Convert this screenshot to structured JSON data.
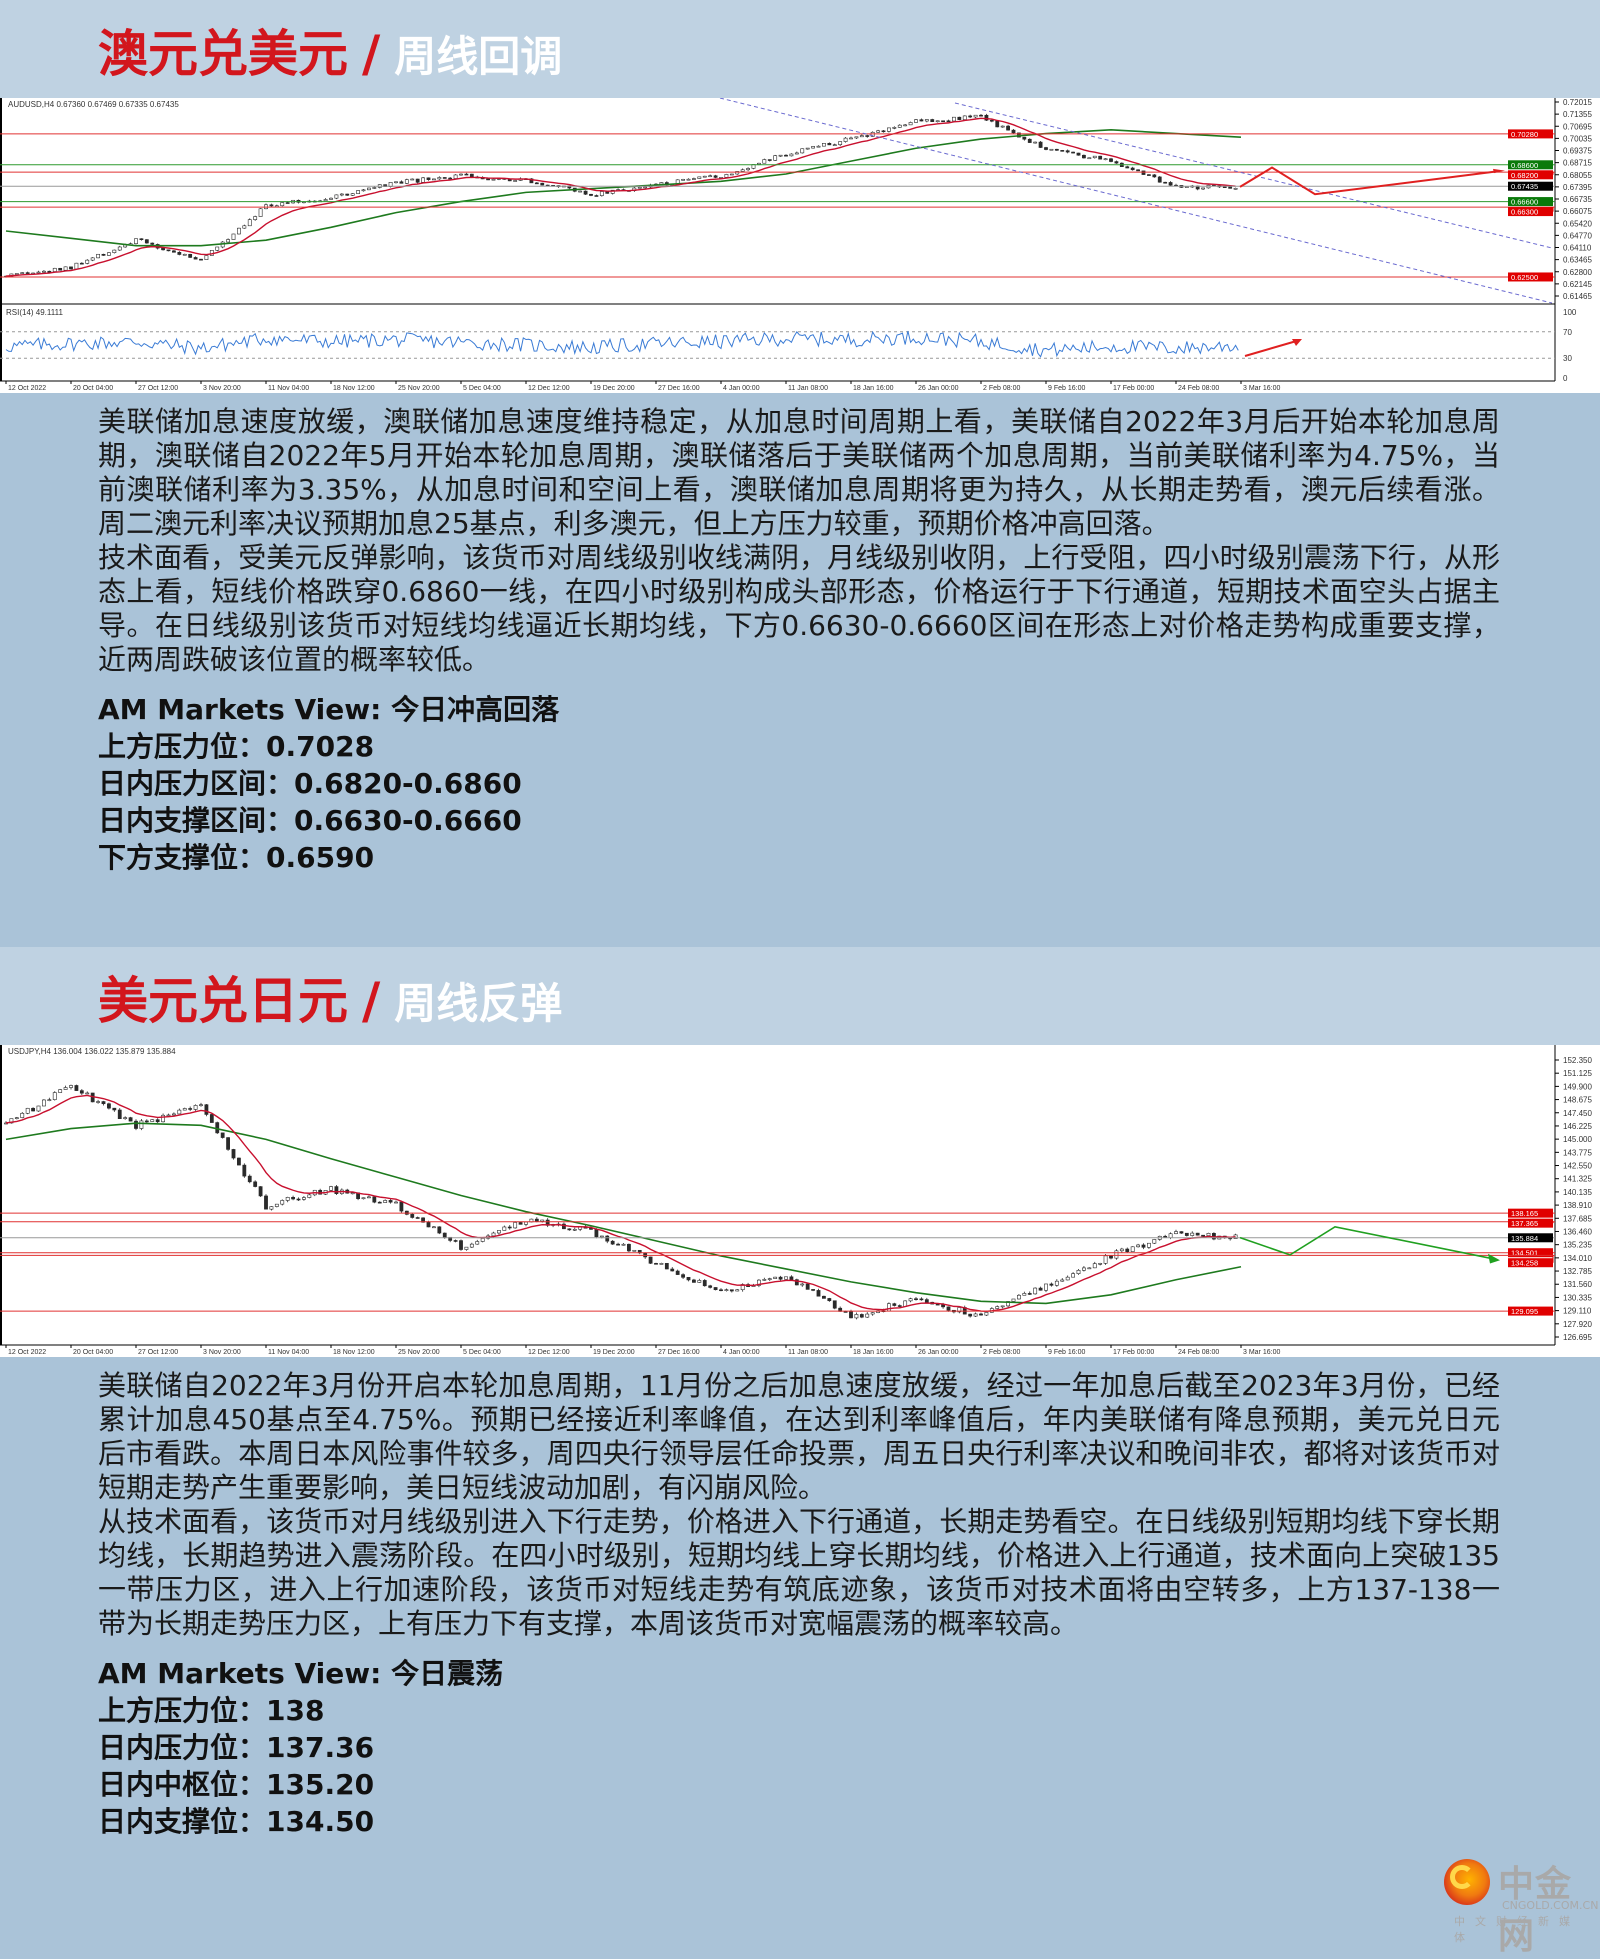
{
  "colors": {
    "title_red": "#d2161d",
    "subtitle": "#ffffff",
    "header_bg": "#bfd2e2",
    "body_bg": "#aac3d8",
    "candle": "#2a2a2a",
    "short_ma": "#c8102e",
    "long_ma": "#1e7a1e",
    "resistance_line": "#e03030",
    "support_line": "#2e9a2e",
    "channel": "#6a6ad0",
    "projection_aud": "#e02020",
    "projection_jpy": "#20a020"
  },
  "sections": [
    {
      "title": "澳元兑美元",
      "slash": "/",
      "subtitle": "周线回调",
      "paragraphs": [
        "美联储加息速度放缓，澳联储加息速度维持稳定，从加息时间周期上看，美联储自2022年3月后开始本轮加息周期，澳联储自2022年5月开始本轮加息周期，澳联储落后于美联储两个加息周期，当前美联储利率为4.75%，当前澳联储利率为3.35%，从加息时间和空间上看，澳联储加息周期将更为持久，从长期走势看，澳元后续看涨。周二澳元利率决议预期加息25基点，利多澳元，但上方压力较重，预期价格冲高回落。",
        "技术面看，受美元反弹影响，该货币对周线级别收线满阴，月线级别收阴，上行受阻，四小时级别震荡下行，从形态上看，短线价格跌穿0.6860一线，在四小时级别构成头部形态，价格运行于下行通道，短期技术面空头占据主导。在日线级别该货币对短线均线逼近长期均线，下方0.6630-0.6660区间在形态上对价格走势构成重要支撑，近两周跌破该位置的概率较低。"
      ],
      "view": [
        "AM Markets View: 今日冲高回落",
        "上方压力位：0.7028",
        "日内压力区间：0.6820-0.6860",
        "日内支撑区间：0.6630-0.6660",
        "下方支撑位：0.6590"
      ]
    },
    {
      "title": "美元兑日元",
      "slash": "/",
      "subtitle": "周线反弹",
      "paragraphs": [
        "美联储自2022年3月份开启本轮加息周期，11月份之后加息速度放缓，经过一年加息后截至2023年3月份，已经累计加息450基点至4.75%。预期已经接近利率峰值，在达到利率峰值后，年内美联储有降息预期，美元兑日元后市看跌。本周日本风险事件较多，周四央行领导层任命投票，周五日央行利率决议和晚间非农，都将对该货币对短期走势产生重要影响，美日短线波动加剧，有闪崩风险。",
        "从技术面看，该货币对月线级别进入下行走势，价格进入下行通道，长期走势看空。在日线级别短期均线下穿长期均线，长期趋势进入震荡阶段。在四小时级别，短期均线上穿长期均线，价格进入上行通道，技术面向上突破135一带压力区，进入上行加速阶段，该货币对短线走势有筑底迹象，该货币对技术面将由空转多，上方137-138一带为长期走势压力区，上有压力下有支撑，本周该货币对宽幅震荡的概率较高。"
      ],
      "view": [
        "AM Markets View: 今日震荡",
        "上方压力位：138",
        "日内压力位：137.36",
        "日内中枢位：135.20",
        "日内支撑位：134.50"
      ]
    }
  ],
  "chart_data": [
    {
      "type": "candlestick",
      "header": "AUDUSD,H4  0.67360 0.67469 0.67335 0.67435",
      "x_ticks": [
        "12 Oct 2022",
        "20 Oct 04:00",
        "27 Oct 12:00",
        "3 Nov 20:00",
        "11 Nov 04:00",
        "18 Nov 12:00",
        "25 Nov 20:00",
        "5 Dec 04:00",
        "12 Dec 12:00",
        "19 Dec 20:00",
        "27 Dec 16:00",
        "4 Jan 00:00",
        "11 Jan 08:00",
        "18 Jan 16:00",
        "26 Jan 00:00",
        "2 Feb 08:00",
        "9 Feb 16:00",
        "17 Feb 00:00",
        "24 Feb 08:00",
        "3 Mar 16:00"
      ],
      "close_at_ticks": [
        0.625,
        0.63,
        0.645,
        0.634,
        0.664,
        0.668,
        0.676,
        0.68,
        0.678,
        0.67,
        0.675,
        0.68,
        0.692,
        0.7,
        0.71,
        0.712,
        0.695,
        0.688,
        0.674,
        0.674
      ],
      "long_ma_at_ticks": [
        0.65,
        0.646,
        0.642,
        0.642,
        0.645,
        0.652,
        0.66,
        0.666,
        0.671,
        0.673,
        0.675,
        0.677,
        0.681,
        0.688,
        0.695,
        0.7,
        0.703,
        0.705,
        0.703,
        0.701
      ],
      "ylim": [
        0.61465,
        0.72015
      ],
      "y_ticks": [
        "0.72015",
        "0.71355",
        "0.70695",
        "0.70035",
        "0.69375",
        "0.68715",
        "0.68055",
        "0.67395",
        "0.66735",
        "0.66075",
        "0.65420",
        "0.64770",
        "0.64110",
        "0.63465",
        "0.62800",
        "0.62145",
        "0.61465"
      ],
      "levels": [
        {
          "label": "0.70280",
          "value": 0.7028,
          "kind": "resistance"
        },
        {
          "label": "0.68600",
          "value": 0.686,
          "kind": "support"
        },
        {
          "label": "0.68200",
          "value": 0.682,
          "kind": "resistance"
        },
        {
          "label": "0.67435",
          "value": 0.67435,
          "kind": "current"
        },
        {
          "label": "0.66600",
          "value": 0.666,
          "kind": "support"
        },
        {
          "label": "0.66300",
          "value": 0.663,
          "kind": "resistance"
        },
        {
          "label": "0.62500",
          "value": 0.625,
          "kind": "resistance"
        }
      ],
      "indicator": {
        "header": "RSI(14) 49.1111",
        "ylim": [
          0,
          100
        ],
        "levels": [
          70,
          30
        ],
        "y_ticks": [
          "100",
          "70",
          "30",
          "0"
        ],
        "values_at_ticks": [
          48,
          52,
          55,
          45,
          60,
          55,
          58,
          54,
          50,
          46,
          52,
          55,
          60,
          58,
          62,
          55,
          42,
          48,
          45,
          49
        ]
      }
    },
    {
      "type": "candlestick",
      "header": "USDJPY,H4  136.004 136.022 135.879 135.884",
      "x_ticks": [
        "12 Oct 2022",
        "20 Oct 04:00",
        "27 Oct 12:00",
        "3 Nov 20:00",
        "11 Nov 04:00",
        "18 Nov 12:00",
        "25 Nov 20:00",
        "5 Dec 04:00",
        "12 Dec 12:00",
        "19 Dec 20:00",
        "27 Dec 16:00",
        "4 Jan 00:00",
        "11 Jan 08:00",
        "18 Jan 16:00",
        "26 Jan 00:00",
        "2 Feb 08:00",
        "9 Feb 16:00",
        "17 Feb 00:00",
        "24 Feb 08:00",
        "3 Mar 16:00"
      ],
      "close_at_ticks": [
        146.5,
        149.9,
        146.3,
        148.0,
        138.8,
        140.4,
        138.9,
        135.0,
        137.5,
        136.5,
        133.5,
        131.0,
        132.4,
        128.5,
        130.2,
        128.6,
        131.5,
        134.2,
        136.3,
        135.9
      ],
      "long_ma_at_ticks": [
        145.0,
        146.0,
        146.5,
        146.3,
        145.0,
        143.2,
        141.5,
        139.8,
        138.3,
        137.0,
        135.6,
        134.2,
        133.0,
        131.8,
        130.8,
        130.0,
        129.8,
        130.6,
        132.0,
        133.2
      ],
      "ylim": [
        126.695,
        152.35
      ],
      "y_ticks": [
        "152.350",
        "151.125",
        "149.900",
        "148.675",
        "147.450",
        "146.225",
        "145.000",
        "143.775",
        "142.550",
        "141.325",
        "140.135",
        "138.910",
        "137.685",
        "136.460",
        "135.235",
        "134.010",
        "132.785",
        "131.560",
        "130.335",
        "129.110",
        "127.920",
        "126.695"
      ],
      "levels": [
        {
          "label": "138.165",
          "value": 138.165,
          "kind": "resistance"
        },
        {
          "label": "137.365",
          "value": 137.365,
          "kind": "resistance"
        },
        {
          "label": "135.884",
          "value": 135.884,
          "kind": "current"
        },
        {
          "label": "134.501",
          "value": 134.501,
          "kind": "resistance"
        },
        {
          "label": "134.258",
          "value": 134.258,
          "kind": "resistance"
        },
        {
          "label": "129.095",
          "value": 129.095,
          "kind": "resistance"
        }
      ]
    }
  ],
  "logo": {
    "name": "中金网",
    "domain": "CNGOLD.COM.CN",
    "tagline": "中文财经新媒体"
  }
}
